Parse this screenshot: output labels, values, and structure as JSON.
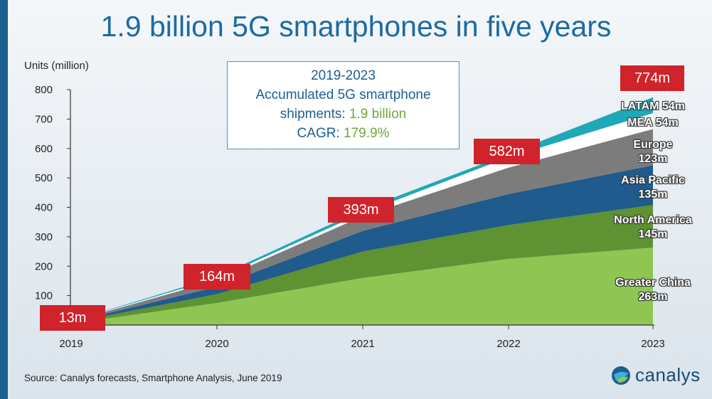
{
  "title": "1.9 billion 5G smartphones in five years",
  "callout": {
    "line1": "2019-2023",
    "line2": "Accumulated 5G smartphone",
    "line3_prefix": "shipments: ",
    "line3_value": "1.9 billion",
    "line4_prefix": "CAGR: ",
    "line4_value": "179.9%"
  },
  "source": "Source: Canalys forecasts, Smartphone Analysis, June 2019",
  "logo": {
    "word": "canalys",
    "icon": "canalys-globe-icon"
  },
  "colors": {
    "greater_china": "#8fc653",
    "north_america": "#5e9232",
    "asia_pacific": "#1f5b8c",
    "europe": "#7c7c7c",
    "mea": "#ffffff",
    "latam": "#1fa8b8",
    "total_label_bg": "#d0232b",
    "title": "#1c6aa3"
  },
  "chart_data": {
    "type": "area",
    "stacked": true,
    "ylabel": "Units (million)",
    "xlabel": "",
    "ylim": [
      0,
      800
    ],
    "yticks": [
      0,
      100,
      200,
      300,
      400,
      500,
      600,
      700,
      800
    ],
    "categories": [
      "2019",
      "2020",
      "2021",
      "2022",
      "2023"
    ],
    "series": [
      {
        "key": "greater_china",
        "region_label": "Greater China",
        "region_value": "263m",
        "values": [
          5,
          75,
          160,
          225,
          263
        ]
      },
      {
        "key": "north_america",
        "region_label": "North America",
        "region_value": "145m",
        "values": [
          3,
          30,
          90,
          115,
          145
        ]
      },
      {
        "key": "asia_pacific",
        "region_label": "Asia Pacific",
        "region_value": "135m",
        "values": [
          2,
          25,
          70,
          105,
          135
        ]
      },
      {
        "key": "europe",
        "region_label": "Europe",
        "region_value": "123m",
        "values": [
          2,
          22,
          50,
          90,
          123
        ]
      },
      {
        "key": "mea",
        "region_label": "MEA",
        "region_value": "54m",
        "values": [
          0.5,
          6,
          11,
          35,
          54
        ]
      },
      {
        "key": "latam",
        "region_label": "LATAM",
        "region_value": "54m",
        "values": [
          0.5,
          6,
          12,
          12,
          54
        ]
      }
    ],
    "totals": [
      "13m",
      "164m",
      "393m",
      "582m",
      "774m"
    ],
    "grid": false,
    "legend": "inline-right"
  }
}
